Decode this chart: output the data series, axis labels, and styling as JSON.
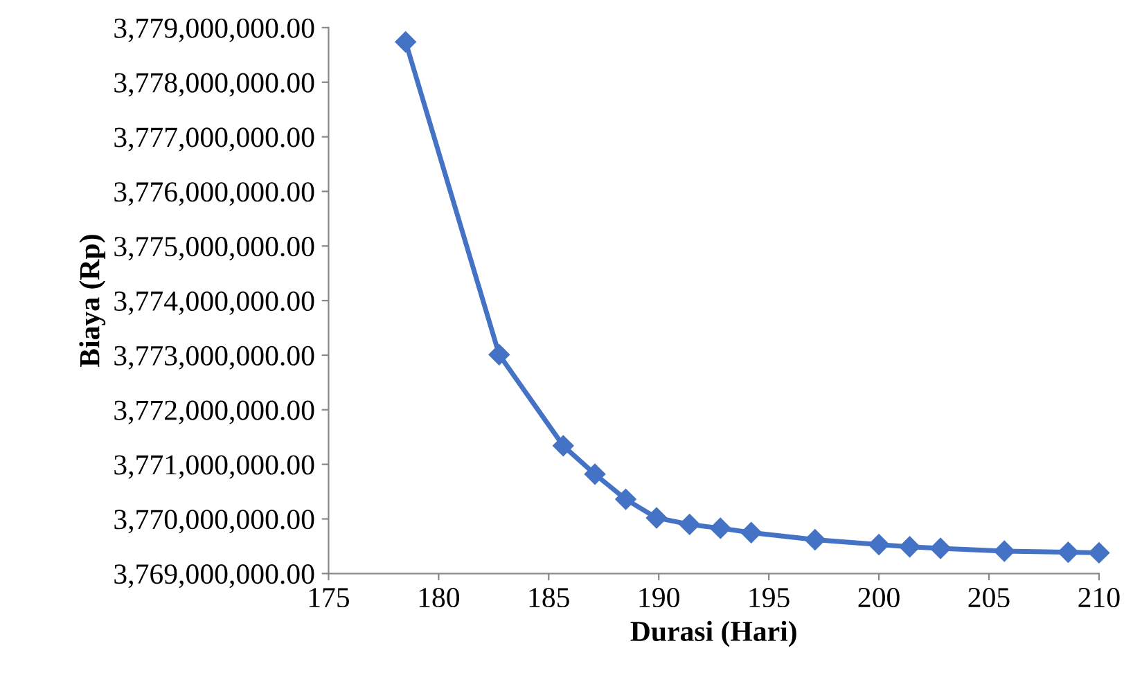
{
  "chart_data": {
    "type": "line",
    "xlabel": "Durasi (Hari)",
    "ylabel": "Biaya (Rp)",
    "x": [
      178.5,
      182.75,
      185.66,
      187.1,
      188.5,
      189.9,
      191.4,
      192.8,
      194.2,
      197.1,
      200.0,
      201.4,
      202.8,
      205.7,
      208.6,
      210.0
    ],
    "series": [
      {
        "color": "#4472c4",
        "values": [
          3778740000,
          3773010000,
          3771340000,
          3770820000,
          3770360000,
          3770020000,
          3769900000,
          3769830000,
          3769750000,
          3769620000,
          3769530000,
          3769490000,
          3769460000,
          3769410000,
          3769390000,
          3769380000
        ]
      }
    ],
    "xlim": [
      175,
      210
    ],
    "xticks": [
      175,
      180,
      185,
      190,
      195,
      200,
      205,
      210
    ],
    "ylim": [
      3769000000,
      3779000000
    ],
    "yticks": [
      {
        "value": 3769000000,
        "label": "3,769,000,000.00"
      },
      {
        "value": 3770000000,
        "label": "3,770,000,000.00"
      },
      {
        "value": 3771000000,
        "label": "3,771,000,000.00"
      },
      {
        "value": 3772000000,
        "label": "3,772,000,000.00"
      },
      {
        "value": 3773000000,
        "label": "3,773,000,000.00"
      },
      {
        "value": 3774000000,
        "label": "3,774,000,000.00"
      },
      {
        "value": 3775000000,
        "label": "3,775,000,000.00"
      },
      {
        "value": 3776000000,
        "label": "3,776,000,000.00"
      },
      {
        "value": 3777000000,
        "label": "3,777,000,000.00"
      },
      {
        "value": 3778000000,
        "label": "3,778,000,000.00"
      },
      {
        "value": 3779000000,
        "label": "3,779,000,000.00"
      }
    ],
    "grid": false,
    "legend": false,
    "marker": "diamond",
    "line_style": "solid"
  }
}
